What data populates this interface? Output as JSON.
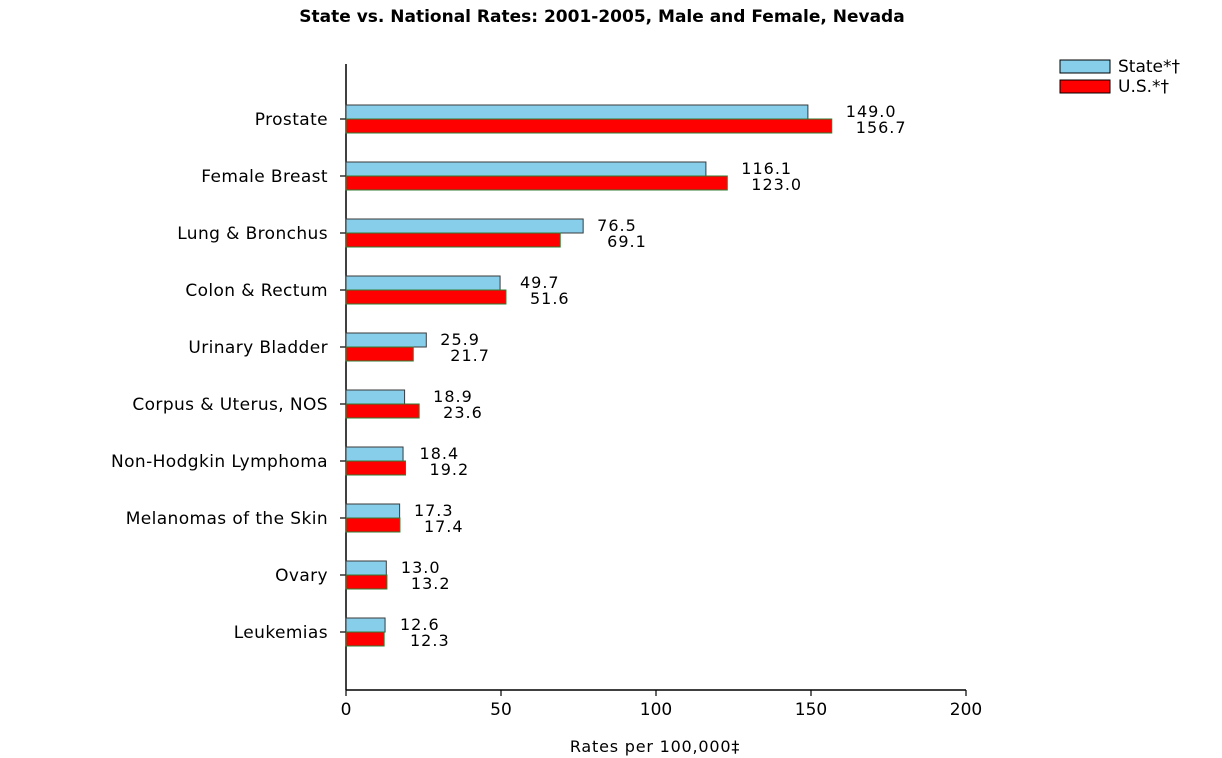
{
  "chart_data": {
    "type": "bar",
    "orientation": "horizontal",
    "title": "State vs. National Rates: 2001-2005, Male and Female, Nevada",
    "xlabel": "Rates per 100,000‡",
    "ylabel": "",
    "xlim": [
      0,
      200
    ],
    "xticks": [
      0,
      50,
      100,
      150,
      200
    ],
    "grid": false,
    "legend_position": "top-right",
    "categories": [
      "Prostate",
      "Female Breast",
      "Lung & Bronchus",
      "Colon & Rectum",
      "Urinary Bladder",
      "Corpus & Uterus, NOS",
      "Non-Hodgkin Lymphoma",
      "Melanomas of the Skin",
      "Ovary",
      "Leukemias"
    ],
    "series": [
      {
        "name": "State*†",
        "color": "#87CEEB",
        "values": [
          149.0,
          116.1,
          76.5,
          49.7,
          25.9,
          18.9,
          18.4,
          17.3,
          13.0,
          12.6
        ],
        "labels": [
          "149.0",
          "116.1",
          "76.5",
          "49.7",
          "25.9",
          "18.9",
          "18.4",
          "17.3",
          "13.0",
          "12.6"
        ]
      },
      {
        "name": "U.S.*†",
        "color": "#FF0000",
        "values": [
          156.7,
          123.0,
          69.1,
          51.6,
          21.7,
          23.6,
          19.2,
          17.4,
          13.2,
          12.3
        ],
        "labels": [
          "156.7",
          "123.0",
          "69.1",
          "51.6",
          "21.7",
          "23.6",
          "19.2",
          "17.4",
          "13.2",
          "12.3"
        ]
      }
    ]
  }
}
